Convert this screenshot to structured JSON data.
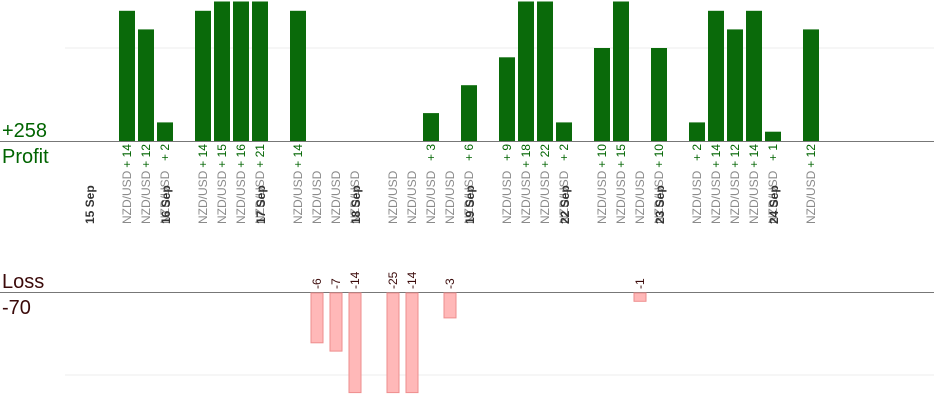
{
  "summary": {
    "profit_total": "+258",
    "profit_label": "Profit",
    "loss_label": "Loss",
    "loss_total": "-70"
  },
  "colors": {
    "profit_bar": "#0a6a0a",
    "profit_text": "#006400",
    "loss_bar": "#ffb8b8",
    "loss_border": "#ee8e8e",
    "loss_text": "#3b0a0a",
    "pair_text": "#8a8a8a",
    "date_text": "#333333",
    "axis": "#777777",
    "grid": "#eeeeee"
  },
  "chart_data": {
    "type": "bar",
    "grid": true,
    "profit_axis_max": 15,
    "loss_axis_max": 12,
    "groups": [
      {
        "date": "15 Sep",
        "pair": "NZD/USD",
        "trades": [
          14,
          12,
          2
        ]
      },
      {
        "date": "16 Sep",
        "pair": "NZD/USD",
        "trades": [
          14,
          15,
          16,
          21
        ]
      },
      {
        "date": "17 Sep",
        "pair": "NZD/USD",
        "trades": [
          14,
          -6,
          -7,
          -14
        ]
      },
      {
        "date": "18 Sep",
        "pair": "NZD/USD",
        "trades": [
          -25,
          -14,
          3,
          -3,
          6
        ]
      },
      {
        "date": "19 Sep",
        "pair": "NZD/USD",
        "trades": [
          9,
          18,
          22,
          2
        ]
      },
      {
        "date": "22 Sep",
        "pair": "NZD/USD",
        "trades": [
          10,
          15,
          -1,
          10
        ]
      },
      {
        "date": "23 Sep",
        "pair": "NZD/USD",
        "trades": [
          2,
          14,
          12,
          14,
          1
        ]
      },
      {
        "date": "24 Sep",
        "pair": "NZD/USD",
        "trades": [
          12
        ]
      }
    ]
  }
}
